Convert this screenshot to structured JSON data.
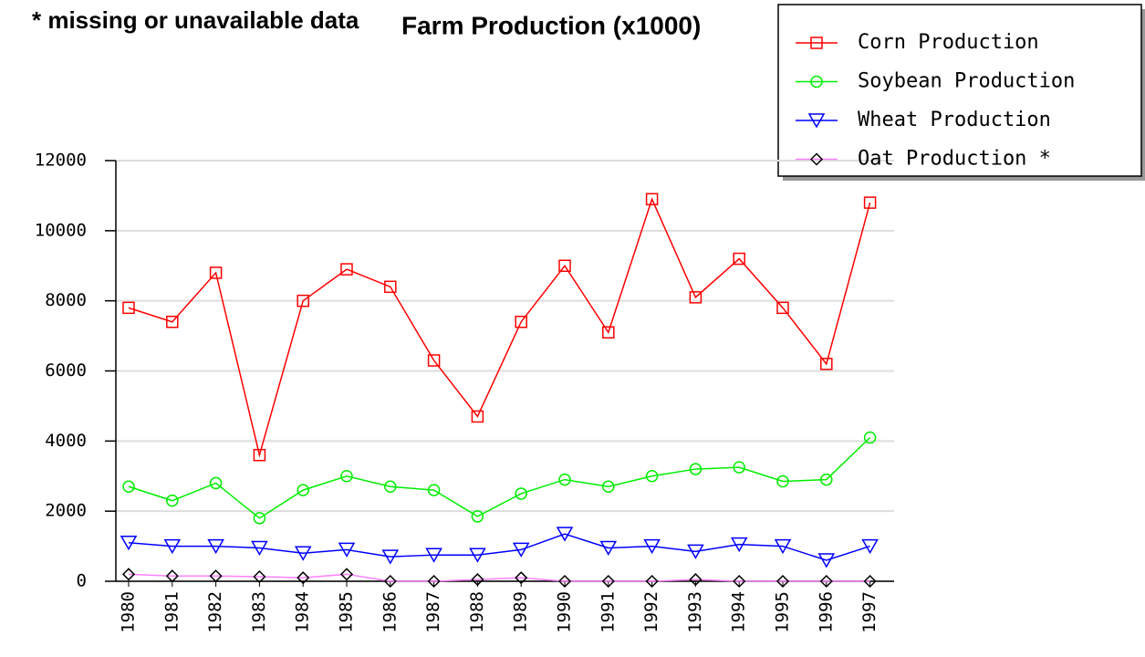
{
  "chart_data": {
    "type": "line",
    "title": "Farm Production (x1000)",
    "annotation": "* missing or unavailable data",
    "categories": [
      "1980",
      "1981",
      "1982",
      "1983",
      "1984",
      "1985",
      "1986",
      "1987",
      "1988",
      "1989",
      "1990",
      "1991",
      "1992",
      "1993",
      "1994",
      "1995",
      "1996",
      "1997"
    ],
    "series": [
      {
        "name": "Corn Production",
        "color": "#ff0000",
        "marker": "square",
        "marker_color": "#ff0000",
        "values": [
          7800,
          7400,
          8800,
          3600,
          8000,
          8900,
          8400,
          6300,
          4700,
          7400,
          9000,
          7100,
          10900,
          8100,
          9200,
          7800,
          6200,
          10800
        ]
      },
      {
        "name": "Soybean Production",
        "color": "#00ee00",
        "marker": "circle",
        "marker_color": "#00ee00",
        "values": [
          2700,
          2300,
          2800,
          1800,
          2600,
          3000,
          2700,
          2600,
          1850,
          2500,
          2900,
          2700,
          3000,
          3200,
          3250,
          2850,
          2900,
          4100
        ]
      },
      {
        "name": "Wheat Production",
        "color": "#0000ff",
        "marker": "triangle",
        "marker_color": "#0000ff",
        "values": [
          1100,
          1000,
          1000,
          950,
          800,
          900,
          700,
          750,
          750,
          900,
          1350,
          950,
          1000,
          850,
          1050,
          1000,
          600,
          1000
        ]
      },
      {
        "name": "Oat Production *",
        "color": "#ff80ff",
        "marker": "diamond",
        "marker_color": "#000000",
        "values": [
          200,
          150,
          150,
          130,
          100,
          200,
          0,
          0,
          50,
          100,
          0,
          0,
          0,
          50,
          0,
          0,
          0,
          0
        ]
      }
    ],
    "ylim": [
      0,
      12000
    ],
    "yticks": [
      0,
      2000,
      4000,
      6000,
      8000,
      10000,
      12000
    ],
    "grid": true
  }
}
